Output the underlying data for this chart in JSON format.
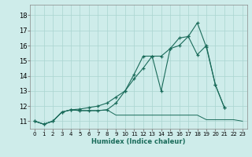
{
  "xlabel": "Humidex (Indice chaleur)",
  "bg_color": "#ceecea",
  "grid_color": "#aad4d0",
  "line_color": "#1a6b5a",
  "xlim": [
    -0.5,
    23.5
  ],
  "ylim": [
    10.5,
    18.7
  ],
  "yticks": [
    11,
    12,
    13,
    14,
    15,
    16,
    17,
    18
  ],
  "xticks": [
    0,
    1,
    2,
    3,
    4,
    5,
    6,
    7,
    8,
    9,
    10,
    11,
    12,
    13,
    14,
    15,
    16,
    17,
    18,
    19,
    20,
    21,
    22,
    23
  ],
  "series1_x": [
    0,
    1,
    2,
    3,
    4,
    5,
    6,
    7,
    8,
    9,
    10,
    11,
    12,
    13,
    14,
    15,
    16,
    17,
    18,
    19,
    20,
    21,
    22,
    23
  ],
  "series1_y": [
    11.0,
    10.8,
    11.0,
    11.6,
    11.75,
    11.7,
    11.7,
    11.7,
    11.75,
    11.4,
    11.4,
    11.4,
    11.4,
    11.4,
    11.4,
    11.4,
    11.4,
    11.4,
    11.4,
    11.1,
    11.1,
    11.1,
    11.1,
    11.0
  ],
  "series2_x": [
    0,
    1,
    2,
    3,
    4,
    5,
    6,
    7,
    8,
    9,
    10,
    11,
    12,
    13,
    14,
    15,
    16,
    17,
    18,
    19,
    20,
    21
  ],
  "series2_y": [
    11.0,
    10.8,
    11.0,
    11.6,
    11.75,
    11.7,
    11.7,
    11.7,
    11.75,
    12.2,
    13.0,
    13.8,
    14.5,
    15.3,
    15.3,
    15.8,
    16.0,
    16.6,
    17.5,
    15.9,
    13.4,
    11.9
  ],
  "series3_x": [
    0,
    1,
    2,
    3,
    4,
    5,
    6,
    7,
    8,
    9,
    10,
    11,
    12,
    13,
    14,
    15,
    16,
    17,
    18,
    19,
    20,
    21
  ],
  "series3_y": [
    11.0,
    10.8,
    11.0,
    11.6,
    11.75,
    11.8,
    11.9,
    12.0,
    12.2,
    12.6,
    13.0,
    14.1,
    15.3,
    15.3,
    13.0,
    15.8,
    16.5,
    16.6,
    15.4,
    16.0,
    13.4,
    11.9
  ]
}
